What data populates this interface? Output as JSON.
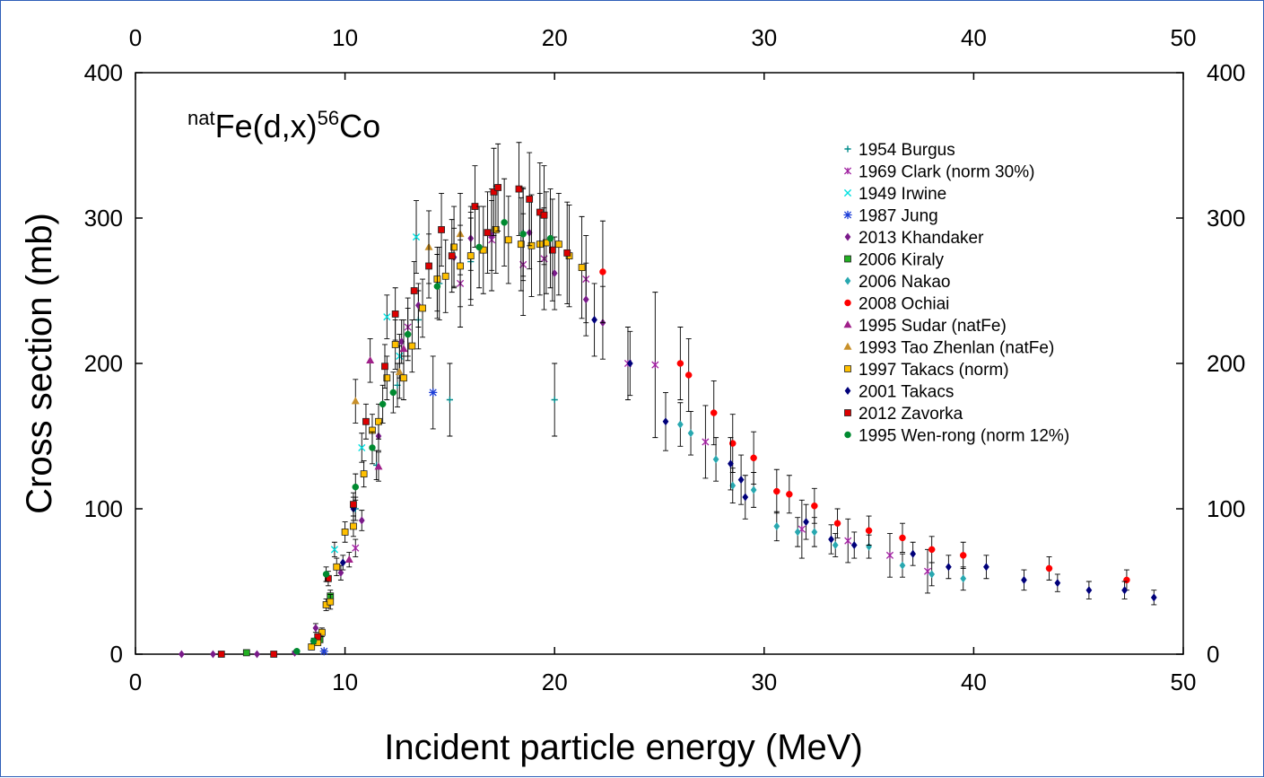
{
  "chart_data": {
    "type": "scatter",
    "title_parts": {
      "pre_sup": "nat",
      "main1": "Fe(d,x)",
      "sup2": "56",
      "main2": "Co"
    },
    "xlabel": "Incident particle energy (MeV)",
    "ylabel": "Cross section (mb)",
    "xlim": [
      0,
      50
    ],
    "ylim": [
      0,
      400
    ],
    "x_ticks": [
      0,
      10,
      20,
      30,
      40,
      50
    ],
    "y_ticks": [
      0,
      100,
      200,
      300,
      400
    ],
    "x_tick_labels": [
      "0",
      "10",
      "20",
      "30",
      "40",
      "50"
    ],
    "y_tick_labels": [
      "0",
      "100",
      "200",
      "300",
      "400"
    ],
    "legend_position": "top-right",
    "series": [
      {
        "name": "1954 Burgus",
        "color": "#008b8b",
        "marker": "plus",
        "points": [
          [
            10.5,
            100,
            8
          ],
          [
            11.5,
            130,
            10
          ],
          [
            12.5,
            185,
            15
          ],
          [
            13.5,
            230,
            20
          ],
          [
            14.5,
            255,
            25
          ],
          [
            15,
            175,
            25
          ],
          [
            16,
            270,
            30
          ],
          [
            18.5,
            290,
            30
          ],
          [
            20,
            175,
            25
          ]
        ]
      },
      {
        "name": "1969 Clark (norm  30%)",
        "color": "#a020a0",
        "marker": "star",
        "points": [
          [
            10.5,
            73,
            6
          ],
          [
            13,
            225,
            20
          ],
          [
            15.5,
            255,
            30
          ],
          [
            17,
            285,
            35
          ],
          [
            18.5,
            268,
            35
          ],
          [
            19.5,
            272,
            35
          ],
          [
            21.5,
            258,
            30
          ],
          [
            23.5,
            200,
            25
          ],
          [
            24.8,
            199,
            50
          ],
          [
            27.2,
            146,
            25
          ],
          [
            31.8,
            86,
            20
          ],
          [
            34,
            78,
            15
          ],
          [
            36,
            68,
            15
          ],
          [
            37.8,
            57,
            15
          ]
        ]
      },
      {
        "name": "1949 Irwine",
        "color": "#00e0e0",
        "marker": "x",
        "points": [
          [
            9.5,
            72,
            5
          ],
          [
            10.8,
            142,
            10
          ],
          [
            12,
            232,
            15
          ],
          [
            12.6,
            205,
            15
          ],
          [
            13.4,
            287,
            25
          ]
        ]
      },
      {
        "name": "1987 Jung",
        "color": "#1e3fd8",
        "marker": "asterisk",
        "points": [
          [
            9,
            2,
            1
          ],
          [
            14.2,
            180,
            25
          ]
        ]
      },
      {
        "name": "2013 Khandaker",
        "color": "#7a1a8a",
        "marker": "diamond",
        "points": [
          [
            2.2,
            0,
            0
          ],
          [
            3.7,
            0,
            0
          ],
          [
            5.8,
            0,
            0
          ],
          [
            7.6,
            1,
            1
          ],
          [
            8.6,
            18,
            3
          ],
          [
            9.8,
            56,
            5
          ],
          [
            10.8,
            92,
            7
          ],
          [
            11.6,
            150,
            10
          ],
          [
            12.7,
            215,
            15
          ],
          [
            13.5,
            240,
            15
          ],
          [
            15.2,
            273,
            20
          ],
          [
            16,
            286,
            22
          ],
          [
            17,
            288,
            24
          ],
          [
            18.8,
            290,
            25
          ],
          [
            20,
            262,
            25
          ],
          [
            21.5,
            244,
            25
          ],
          [
            22.3,
            228,
            25
          ]
        ]
      },
      {
        "name": "2006 Kiraly",
        "color": "#22b022",
        "marker": "square",
        "points": [
          [
            5.3,
            1,
            0.5
          ],
          [
            8.8,
            10,
            2
          ],
          [
            9.3,
            40,
            4
          ]
        ]
      },
      {
        "name": "2006 Nakao",
        "color": "#28a8b0",
        "marker": "diamond",
        "points": [
          [
            26,
            158,
            15
          ],
          [
            26.5,
            152,
            15
          ],
          [
            27.7,
            134,
            15
          ],
          [
            28.5,
            116,
            12
          ],
          [
            29.5,
            113,
            12
          ],
          [
            30.6,
            88,
            10
          ],
          [
            31.6,
            84,
            10
          ],
          [
            32.4,
            84,
            10
          ],
          [
            33.4,
            75,
            8
          ],
          [
            35,
            74,
            8
          ],
          [
            36.6,
            61,
            8
          ],
          [
            38,
            55,
            8
          ],
          [
            39.5,
            52,
            8
          ]
        ]
      },
      {
        "name": "2008 Ochiai",
        "color": "#ff0000",
        "marker": "circle",
        "points": [
          [
            22.3,
            263,
            35
          ],
          [
            26,
            200,
            25
          ],
          [
            26.4,
            192,
            25
          ],
          [
            27.6,
            166,
            22
          ],
          [
            28.5,
            145,
            20
          ],
          [
            29.5,
            135,
            18
          ],
          [
            30.6,
            112,
            15
          ],
          [
            31.2,
            110,
            13
          ],
          [
            32.4,
            102,
            12
          ],
          [
            33.5,
            90,
            10
          ],
          [
            35,
            85,
            10
          ],
          [
            36.6,
            80,
            10
          ],
          [
            38,
            72,
            9
          ],
          [
            39.5,
            68,
            9
          ],
          [
            43.6,
            59,
            8
          ],
          [
            47.3,
            51,
            7
          ]
        ]
      },
      {
        "name": "1995 Sudar (natFe)",
        "color": "#a0208a",
        "marker": "triangle",
        "points": [
          [
            10.2,
            65,
            5
          ],
          [
            11.2,
            202,
            15
          ],
          [
            11.6,
            129,
            10
          ],
          [
            12.8,
            210,
            20
          ]
        ]
      },
      {
        "name": "1993 Tao Zhenlan (natFe)",
        "color": "#c8902a",
        "marker": "triangle",
        "points": [
          [
            10.5,
            174,
            15
          ],
          [
            12.6,
            194,
            18
          ],
          [
            14,
            280,
            25
          ],
          [
            15.5,
            289,
            28
          ]
        ]
      },
      {
        "name": "1997 Takacs (norm)",
        "color": "#ffc000",
        "marker": "square",
        "points": [
          [
            8.4,
            5,
            2
          ],
          [
            8.7,
            8,
            2
          ],
          [
            8.9,
            15,
            3
          ],
          [
            9.1,
            34,
            4
          ],
          [
            9.3,
            36,
            5
          ],
          [
            9.6,
            60,
            6
          ],
          [
            10,
            84,
            7
          ],
          [
            10.4,
            88,
            7
          ],
          [
            10.9,
            124,
            9
          ],
          [
            11.3,
            154,
            11
          ],
          [
            11.6,
            160,
            12
          ],
          [
            12,
            190,
            15
          ],
          [
            12.4,
            213,
            17
          ],
          [
            12.8,
            190,
            15
          ],
          [
            13.2,
            212,
            18
          ],
          [
            13.7,
            238,
            20
          ],
          [
            14.4,
            258,
            22
          ],
          [
            14.8,
            260,
            25
          ],
          [
            15.2,
            280,
            28
          ],
          [
            15.5,
            267,
            28
          ],
          [
            16,
            274,
            30
          ],
          [
            16.6,
            278,
            30
          ],
          [
            17.2,
            292,
            30
          ],
          [
            17.8,
            285,
            30
          ],
          [
            18.4,
            282,
            32
          ],
          [
            18.9,
            281,
            35
          ],
          [
            19.3,
            282,
            35
          ],
          [
            19.6,
            283,
            35
          ],
          [
            20.2,
            282,
            35
          ],
          [
            20.7,
            274,
            35
          ],
          [
            21.3,
            266,
            35
          ]
        ]
      },
      {
        "name": "2001 Takacs",
        "color": "#00007a",
        "marker": "diamond",
        "points": [
          [
            9.9,
            63,
            5
          ],
          [
            10.4,
            100,
            8
          ],
          [
            21.9,
            230,
            25
          ],
          [
            23.6,
            200,
            22
          ],
          [
            25.3,
            160,
            20
          ],
          [
            28.4,
            131,
            18
          ],
          [
            28.9,
            120,
            17
          ],
          [
            29.1,
            108,
            15
          ],
          [
            32,
            91,
            12
          ],
          [
            33.2,
            79,
            10
          ],
          [
            34.3,
            75,
            9
          ],
          [
            37.1,
            69,
            8
          ],
          [
            38.8,
            60,
            8
          ],
          [
            40.6,
            60,
            8
          ],
          [
            42.4,
            51,
            7
          ],
          [
            44,
            49,
            6
          ],
          [
            45.5,
            44,
            6
          ],
          [
            47.2,
            44,
            6
          ],
          [
            48.6,
            39,
            5
          ]
        ]
      },
      {
        "name": "2012 Zavorka",
        "color": "#dd0000",
        "marker": "square",
        "points": [
          [
            4.1,
            0,
            0
          ],
          [
            6.6,
            0,
            0
          ],
          [
            8.7,
            12,
            2
          ],
          [
            9.2,
            52,
            5
          ],
          [
            10.4,
            103,
            8
          ],
          [
            11,
            160,
            12
          ],
          [
            11.9,
            198,
            15
          ],
          [
            12.4,
            234,
            18
          ],
          [
            13.3,
            250,
            20
          ],
          [
            14,
            267,
            22
          ],
          [
            14.6,
            292,
            25
          ],
          [
            15.1,
            274,
            25
          ],
          [
            16.2,
            308,
            28
          ],
          [
            16.8,
            290,
            28
          ],
          [
            17.1,
            318,
            30
          ],
          [
            17.3,
            321,
            30
          ],
          [
            18.3,
            320,
            32
          ],
          [
            18.8,
            313,
            32
          ],
          [
            19.3,
            304,
            34
          ],
          [
            19.5,
            302,
            34
          ],
          [
            19.9,
            278,
            35
          ],
          [
            20.6,
            276,
            35
          ]
        ]
      },
      {
        "name": "1995 Wen-rong (norm 12%)",
        "color": "#008a30",
        "marker": "circle",
        "points": [
          [
            7.7,
            2,
            1
          ],
          [
            8.5,
            9,
            2
          ],
          [
            9.1,
            55,
            5
          ],
          [
            10.5,
            115,
            9
          ],
          [
            11.3,
            142,
            11
          ],
          [
            11.8,
            172,
            13
          ],
          [
            12.3,
            180,
            14
          ],
          [
            13,
            220,
            18
          ],
          [
            14.4,
            253,
            22
          ],
          [
            16.4,
            280,
            28
          ],
          [
            17.6,
            297,
            30
          ],
          [
            18.5,
            289,
            32
          ],
          [
            19.8,
            286,
            34
          ]
        ]
      }
    ]
  }
}
